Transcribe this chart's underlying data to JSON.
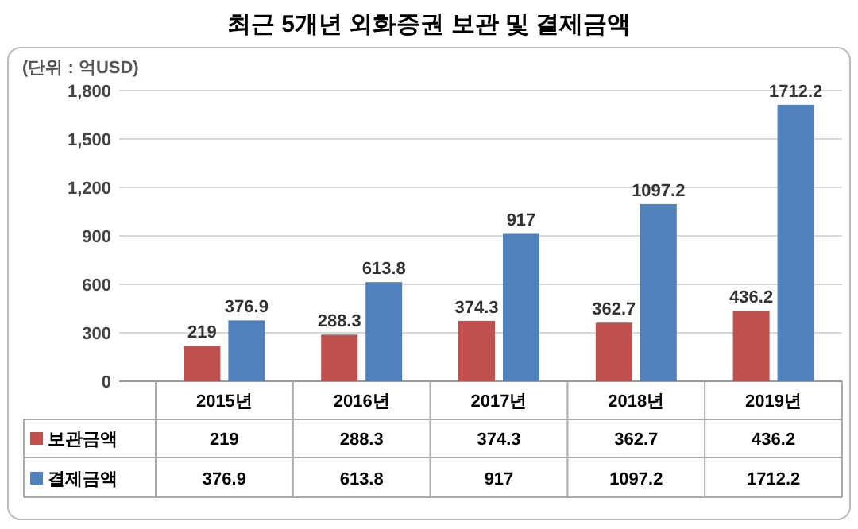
{
  "chart_data": {
    "type": "bar",
    "title": "최근 5개년 외화증권 보관 및 결제금액",
    "ylabel": "(단위 : 억USD)",
    "categories": [
      "2015년",
      "2016년",
      "2017년",
      "2018년",
      "2019년"
    ],
    "series": [
      {
        "name": "보관금액",
        "color": "#c0504d",
        "values": [
          219,
          288.3,
          374.3,
          362.7,
          436.2
        ],
        "value_labels": [
          "219",
          "288.3",
          "374.3",
          "362.7",
          "436.2"
        ]
      },
      {
        "name": "결제금액",
        "color": "#4f81bd",
        "values": [
          376.9,
          613.8,
          917,
          1097.2,
          1712.2
        ],
        "value_labels": [
          "376.9",
          "613.8",
          "917",
          "1097.2",
          "1712.2"
        ]
      }
    ],
    "ylim": [
      0,
      1800
    ],
    "yticks": [
      0,
      300,
      600,
      900,
      {
        "value": 1200,
        "label": "1,200"
      },
      {
        "value": 1500,
        "label": "1,500"
      },
      {
        "value": 1800,
        "label": "1,800"
      }
    ],
    "annotations": [
      "219",
      "288.3",
      "374.3",
      "362.7",
      "436.2",
      "376.9",
      "613.8",
      "917",
      "1097.2",
      "1712.2"
    ],
    "grid": "y",
    "legend": "bottom"
  }
}
